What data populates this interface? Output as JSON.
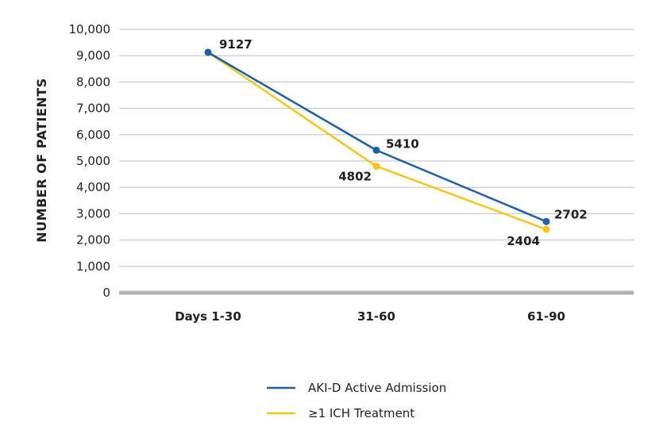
{
  "chart_data": {
    "type": "line",
    "categories": [
      "Days 1-30",
      "31-60",
      "61-90"
    ],
    "ylabel": "NUMBER OF PATIENTS",
    "ylim": [
      0,
      10000
    ],
    "yticks": [
      "0",
      "1,000",
      "2,000",
      "3,000",
      "4,000",
      "5,000",
      "6,000",
      "7,000",
      "8,000",
      "9,000",
      "10,000"
    ],
    "grid": true,
    "legend_position": "bottom",
    "series": [
      {
        "name": "AKI-D Active Admission",
        "color": "#1f5fa3",
        "values": [
          9127,
          5410,
          2702
        ],
        "labels": [
          "9127",
          "5410",
          "2702"
        ]
      },
      {
        "name": "≥1 ICH Treatment",
        "color": "#f5c518",
        "values": [
          9127,
          4802,
          2404
        ],
        "labels": [
          "",
          "4802",
          "2404"
        ]
      }
    ]
  }
}
